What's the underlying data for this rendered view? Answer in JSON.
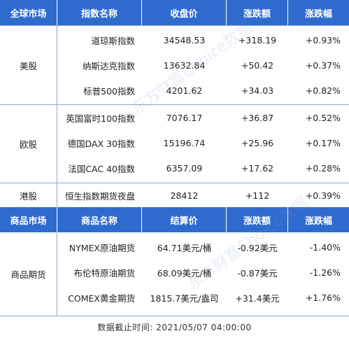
{
  "headers1": [
    "全球市场",
    "指数名称",
    "收盘价",
    "涨跌额",
    "涨跌幅"
  ],
  "groups1": [
    {
      "label": "美股",
      "rows": [
        {
          "name": "道琼斯指数",
          "close": "34548.53",
          "change": "+318.19",
          "pct": "+0.93%"
        },
        {
          "name": "纳斯达克指数",
          "close": "13632.84",
          "change": "+50.42",
          "pct": "+0.37%"
        },
        {
          "name": "标普500指数",
          "close": "4201.62",
          "change": "+34.03",
          "pct": "+0.82%"
        }
      ]
    },
    {
      "label": "欧股",
      "rows": [
        {
          "name": "英国富时100指数",
          "close": "7076.17",
          "change": "+36.87",
          "pct": "+0.52%"
        },
        {
          "name": "德国DAX 30指数",
          "close": "15196.74",
          "change": "+25.96",
          "pct": "+0.17%"
        },
        {
          "name": "法国CAC 40指数",
          "close": "6357.09",
          "change": "+17.62",
          "pct": "+0.28%"
        }
      ]
    },
    {
      "label": "港股",
      "rows": [
        {
          "name": "恒生指数期货夜盘",
          "close": "28412",
          "change": "+112",
          "pct": "+0.39%"
        }
      ]
    }
  ],
  "headers2": [
    "商品市场",
    "商品名称",
    "结算价",
    "涨跌额",
    "涨跌幅"
  ],
  "groups2": [
    {
      "label": "商品期货",
      "rows": [
        {
          "name": "NYMEX原油期货",
          "close": "64.71美元/桶",
          "change": "-0.92美元",
          "pct": "-1.40%"
        },
        {
          "name": "布伦特原油期货",
          "close": "68.09美元/桶",
          "change": "-0.87美元",
          "pct": "-1.26%"
        },
        {
          "name": "COMEX黄金期货",
          "close": "1815.7美元/盎司",
          "change": "+31.4美元",
          "pct": "+1.76%"
        }
      ]
    }
  ],
  "footer": "数据截止时间: 2021/05/07 04:00:00",
  "watermark": "东方财富Choice数据",
  "colors": {
    "header_bg": "#2f6bcf",
    "border": "#8aa7d6"
  }
}
